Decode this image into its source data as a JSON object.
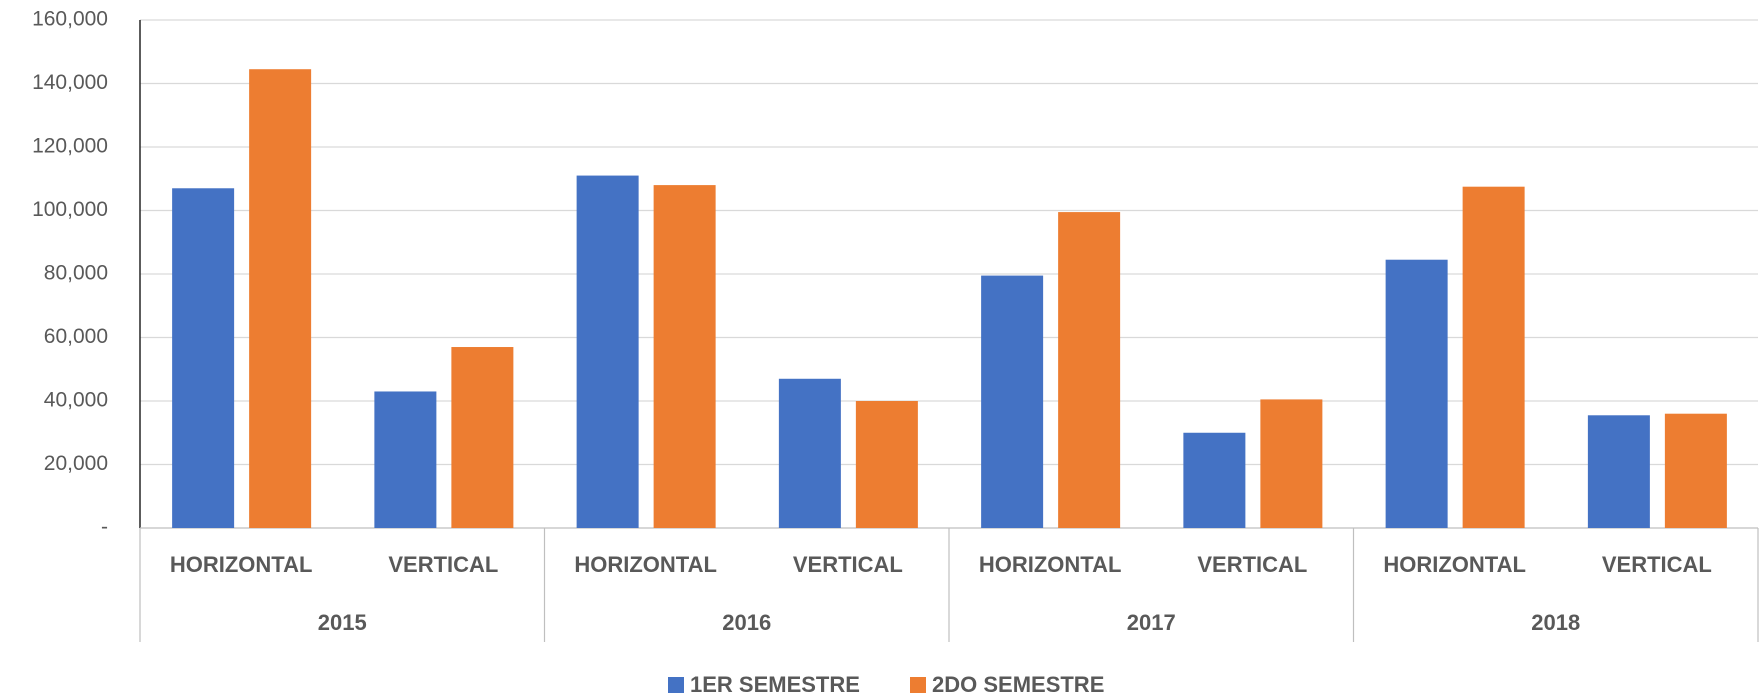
{
  "chart_data": {
    "type": "bar",
    "categories": [
      "HORIZONTAL",
      "VERTICAL",
      "HORIZONTAL",
      "VERTICAL",
      "HORIZONTAL",
      "VERTICAL",
      "HORIZONTAL",
      "VERTICAL"
    ],
    "category_groups": [
      "2015",
      "2016",
      "2017",
      "2018"
    ],
    "series": [
      {
        "name": "1ER SEMESTRE",
        "color": "#4472c4",
        "values": [
          107000,
          43000,
          111000,
          47000,
          79500,
          30000,
          84500,
          35500
        ]
      },
      {
        "name": "2DO SEMESTRE",
        "color": "#ed7d31",
        "values": [
          144500,
          57000,
          108000,
          40000,
          99500,
          40500,
          107500,
          36000
        ]
      }
    ],
    "ylim": [
      0,
      160000
    ],
    "yticks": [
      {
        "value": 0,
        "label": "-"
      },
      {
        "value": 20000,
        "label": "20,000"
      },
      {
        "value": 40000,
        "label": "40,000"
      },
      {
        "value": 60000,
        "label": "60,000"
      },
      {
        "value": 80000,
        "label": "80,000"
      },
      {
        "value": 100000,
        "label": "100,000"
      },
      {
        "value": 120000,
        "label": "120,000"
      },
      {
        "value": 140000,
        "label": "140,000"
      },
      {
        "value": 160000,
        "label": "160,000"
      }
    ],
    "grid": true,
    "legend": "bottom"
  }
}
